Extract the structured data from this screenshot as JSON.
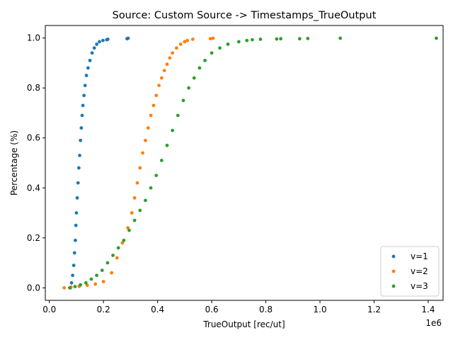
{
  "chart_data": {
    "type": "scatter",
    "title": "Source: Custom Source -> Timestamps_TrueOutput",
    "xlabel": "TrueOutput [rec/ut]",
    "ylabel": "Percentage (%)",
    "x_offset_label": "1e6",
    "xlim": [
      -0.015,
      1.455
    ],
    "ylim": [
      -0.05,
      1.05
    ],
    "x_ticks": [
      0.0,
      0.2,
      0.4,
      0.6,
      0.8,
      1.0,
      1.2,
      1.4
    ],
    "x_tick_labels": [
      "0.0",
      "0.2",
      "0.4",
      "0.6",
      "0.8",
      "1.0",
      "1.2",
      "1.4"
    ],
    "y_ticks": [
      0.0,
      0.2,
      0.4,
      0.6,
      0.8,
      1.0
    ],
    "y_tick_labels": [
      "0.0",
      "0.2",
      "0.4",
      "0.6",
      "0.8",
      "1.0"
    ],
    "grid": false,
    "legend_position": "lower right",
    "series": [
      {
        "name": "v=1",
        "color": "#1f77b4",
        "x": [
          0.078,
          0.082,
          0.086,
          0.09,
          0.093,
          0.096,
          0.098,
          0.1,
          0.103,
          0.106,
          0.109,
          0.112,
          0.115,
          0.118,
          0.121,
          0.124,
          0.128,
          0.132,
          0.137,
          0.143,
          0.15,
          0.158,
          0.166,
          0.175,
          0.185,
          0.198,
          0.212,
          0.216,
          0.287,
          0.291
        ],
        "y": [
          0.0,
          0.02,
          0.05,
          0.09,
          0.14,
          0.19,
          0.25,
          0.3,
          0.36,
          0.42,
          0.48,
          0.53,
          0.59,
          0.64,
          0.69,
          0.73,
          0.77,
          0.81,
          0.85,
          0.88,
          0.91,
          0.94,
          0.96,
          0.975,
          0.985,
          0.99,
          0.993,
          0.995,
          0.997,
          0.999
        ]
      },
      {
        "name": "v=2",
        "color": "#ff7f0e",
        "x": [
          0.055,
          0.08,
          0.11,
          0.14,
          0.17,
          0.2,
          0.23,
          0.25,
          0.27,
          0.29,
          0.305,
          0.315,
          0.325,
          0.335,
          0.345,
          0.355,
          0.365,
          0.375,
          0.385,
          0.395,
          0.405,
          0.415,
          0.425,
          0.435,
          0.445,
          0.455,
          0.47,
          0.485,
          0.5,
          0.51,
          0.53,
          0.595,
          0.605
        ],
        "y": [
          0.0,
          0.003,
          0.006,
          0.01,
          0.015,
          0.025,
          0.06,
          0.12,
          0.18,
          0.24,
          0.3,
          0.36,
          0.42,
          0.48,
          0.54,
          0.59,
          0.64,
          0.69,
          0.73,
          0.77,
          0.81,
          0.84,
          0.87,
          0.895,
          0.92,
          0.94,
          0.96,
          0.975,
          0.985,
          0.99,
          0.995,
          0.997,
          0.999
        ]
      },
      {
        "name": "v=3",
        "color": "#2ca02c",
        "x": [
          0.075,
          0.095,
          0.115,
          0.135,
          0.155,
          0.175,
          0.195,
          0.215,
          0.235,
          0.255,
          0.275,
          0.295,
          0.315,
          0.335,
          0.355,
          0.375,
          0.395,
          0.415,
          0.435,
          0.455,
          0.475,
          0.495,
          0.515,
          0.535,
          0.555,
          0.575,
          0.6,
          0.63,
          0.66,
          0.7,
          0.73,
          0.75,
          0.78,
          0.84,
          0.855,
          0.925,
          0.955,
          1.075,
          1.43
        ],
        "y": [
          0.0,
          0.005,
          0.012,
          0.02,
          0.035,
          0.05,
          0.07,
          0.1,
          0.13,
          0.16,
          0.19,
          0.23,
          0.27,
          0.31,
          0.35,
          0.4,
          0.45,
          0.51,
          0.57,
          0.63,
          0.69,
          0.75,
          0.8,
          0.84,
          0.88,
          0.91,
          0.94,
          0.96,
          0.975,
          0.985,
          0.99,
          0.993,
          0.995,
          0.996,
          0.997,
          0.997,
          0.998,
          0.999,
          0.999
        ]
      }
    ]
  }
}
